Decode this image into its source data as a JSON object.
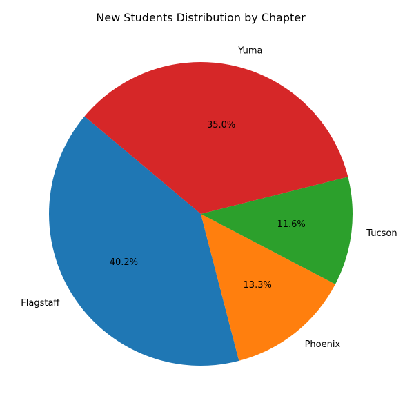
{
  "chart_data": {
    "type": "pie",
    "title": "New Students Distribution by Chapter",
    "categories": [
      "Flagstaff",
      "Phoenix",
      "Tucson",
      "Yuma"
    ],
    "values": [
      40.2,
      13.3,
      11.6,
      35.0
    ],
    "percent_labels": [
      "40.2%",
      "13.3%",
      "11.6%",
      "35.0%"
    ],
    "colors": [
      "#1f77b4",
      "#ff7f0e",
      "#2ca02c",
      "#d62728"
    ],
    "start_angle_deg": 140,
    "direction": "counterclockwise",
    "legend": "none"
  }
}
